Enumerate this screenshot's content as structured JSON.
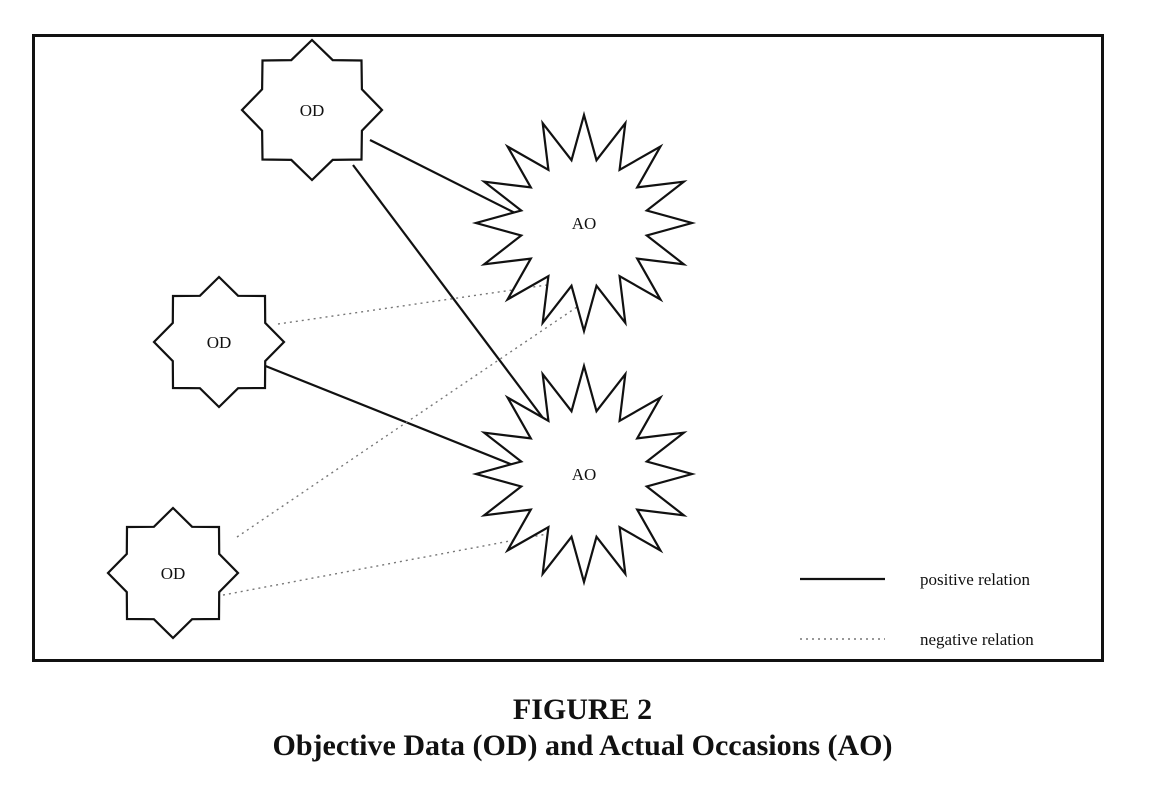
{
  "diagram": {
    "nodes": [
      {
        "id": "od1",
        "type": "od",
        "label": "OD"
      },
      {
        "id": "od2",
        "type": "od",
        "label": "OD"
      },
      {
        "id": "od3",
        "type": "od",
        "label": "OD"
      },
      {
        "id": "ao1",
        "type": "ao",
        "label": "AO"
      },
      {
        "id": "ao2",
        "type": "ao",
        "label": "AO"
      }
    ],
    "edges": [
      {
        "from": "od1",
        "to": "ao1",
        "relation": "positive"
      },
      {
        "from": "od1",
        "to": "ao2",
        "relation": "positive"
      },
      {
        "from": "od2",
        "to": "ao2",
        "relation": "positive"
      },
      {
        "from": "od2",
        "to": "ao1",
        "relation": "negative"
      },
      {
        "from": "od3",
        "to": "ao1",
        "relation": "negative"
      },
      {
        "from": "od3",
        "to": "ao2",
        "relation": "negative"
      }
    ]
  },
  "legend": {
    "positive_label": "positive relation",
    "negative_label": "negative relation"
  },
  "caption": {
    "line1": "FIGURE 2",
    "line2": "Objective Data (OD) and Actual Occasions (AO)"
  }
}
